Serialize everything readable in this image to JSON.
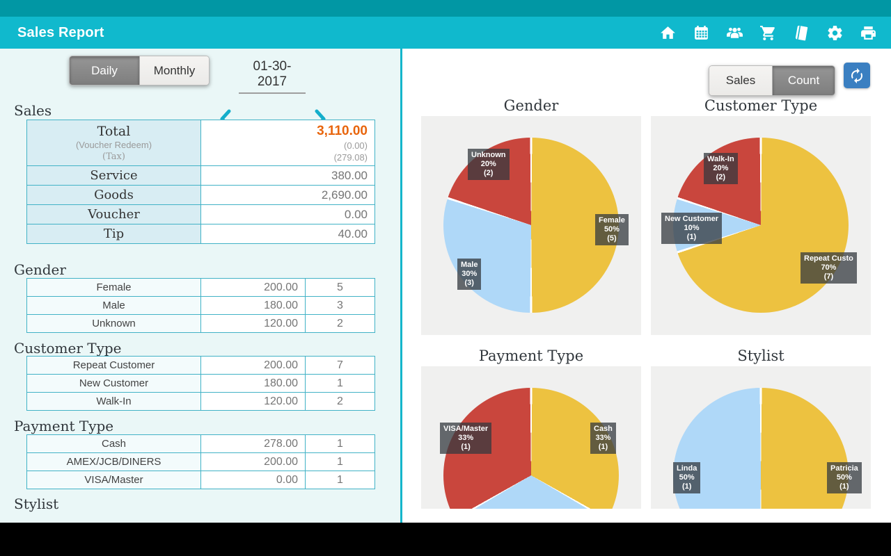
{
  "app": {
    "title": "Sales Report",
    "toolbar_icons": [
      "home-icon",
      "calendar-icon",
      "people-icon",
      "cart-icon",
      "book-icon",
      "settings-icon",
      "print-icon"
    ]
  },
  "colors": {
    "status_bar": "#0197A4",
    "app_bar": "#10B9CD",
    "panel_bg": "#EAF7F7",
    "table_border": "#41B2C6",
    "total_value": "#E8650D",
    "refresh_button": "#3A7FC1",
    "toggle_selected": "#8B8B8B",
    "pie_yellow": "#EDC240",
    "pie_blue": "#AFD8F8",
    "pie_red": "#C9463D"
  },
  "left_panel": {
    "period_toggle": {
      "options": [
        "Daily",
        "Monthly"
      ],
      "selected": "Daily"
    },
    "date_nav": {
      "date": "01-30-2017"
    },
    "sales": {
      "heading": "Sales",
      "total": {
        "label": "Total",
        "sub1_label": "(Voucher Redeem)",
        "sub2_label": "(Tax)",
        "value": "3,110.00",
        "sub1_value": "(0.00)",
        "sub2_value": "(279.08)"
      },
      "rows": [
        {
          "label": "Service",
          "value": "380.00"
        },
        {
          "label": "Goods",
          "value": "2,690.00"
        },
        {
          "label": "Voucher",
          "value": "0.00"
        },
        {
          "label": "Tip",
          "value": "40.00"
        }
      ]
    },
    "sections": [
      {
        "heading": "Gender",
        "rows": [
          [
            "Female",
            "200.00",
            "5"
          ],
          [
            "Male",
            "180.00",
            "3"
          ],
          [
            "Unknown",
            "120.00",
            "2"
          ]
        ]
      },
      {
        "heading": "Customer Type",
        "rows": [
          [
            "Repeat Customer",
            "200.00",
            "7"
          ],
          [
            "New Customer",
            "180.00",
            "1"
          ],
          [
            "Walk-In",
            "120.00",
            "2"
          ]
        ]
      },
      {
        "heading": "Payment Type",
        "rows": [
          [
            "Cash",
            "278.00",
            "1"
          ],
          [
            "AMEX/JCB/DINERS",
            "200.00",
            "1"
          ],
          [
            "VISA/Master",
            "0.00",
            "1"
          ]
        ]
      },
      {
        "heading": "Stylist",
        "rows": []
      }
    ]
  },
  "right_panel": {
    "metric_toggle": {
      "options": [
        "Sales",
        "Count"
      ],
      "selected": "Count"
    }
  },
  "chart_data": [
    {
      "type": "pie",
      "title": "Gender",
      "slices": [
        {
          "label": "Female",
          "pct": 50,
          "count": 5,
          "color": "#EDC240"
        },
        {
          "label": "Male",
          "pct": 30,
          "count": 3,
          "color": "#AFD8F8"
        },
        {
          "label": "Unknown",
          "pct": 20,
          "count": 2,
          "color": "#C9463D"
        }
      ]
    },
    {
      "type": "pie",
      "title": "Customer Type",
      "slices": [
        {
          "label": "Repeat Custo",
          "pct": 70,
          "count": 7,
          "color": "#EDC240"
        },
        {
          "label": "New Customer",
          "pct": 10,
          "count": 1,
          "color": "#AFD8F8"
        },
        {
          "label": "Walk-In",
          "pct": 20,
          "count": 2,
          "color": "#C9463D"
        }
      ]
    },
    {
      "type": "pie",
      "title": "Payment Type",
      "slices": [
        {
          "label": "Cash",
          "pct": 33,
          "count": 1,
          "color": "#EDC240"
        },
        {
          "label": "AMEX/JCB/DINERS",
          "pct": 33,
          "count": 1,
          "color": "#AFD8F8",
          "label_hidden": true
        },
        {
          "label": "VISA/Master",
          "pct": 33,
          "count": 1,
          "color": "#C9463D"
        }
      ]
    },
    {
      "type": "pie",
      "title": "Stylist",
      "slices": [
        {
          "label": "Patricia",
          "pct": 50,
          "count": 1,
          "color": "#EDC240"
        },
        {
          "label": "Linda",
          "pct": 50,
          "count": 1,
          "color": "#AFD8F8"
        }
      ]
    }
  ]
}
